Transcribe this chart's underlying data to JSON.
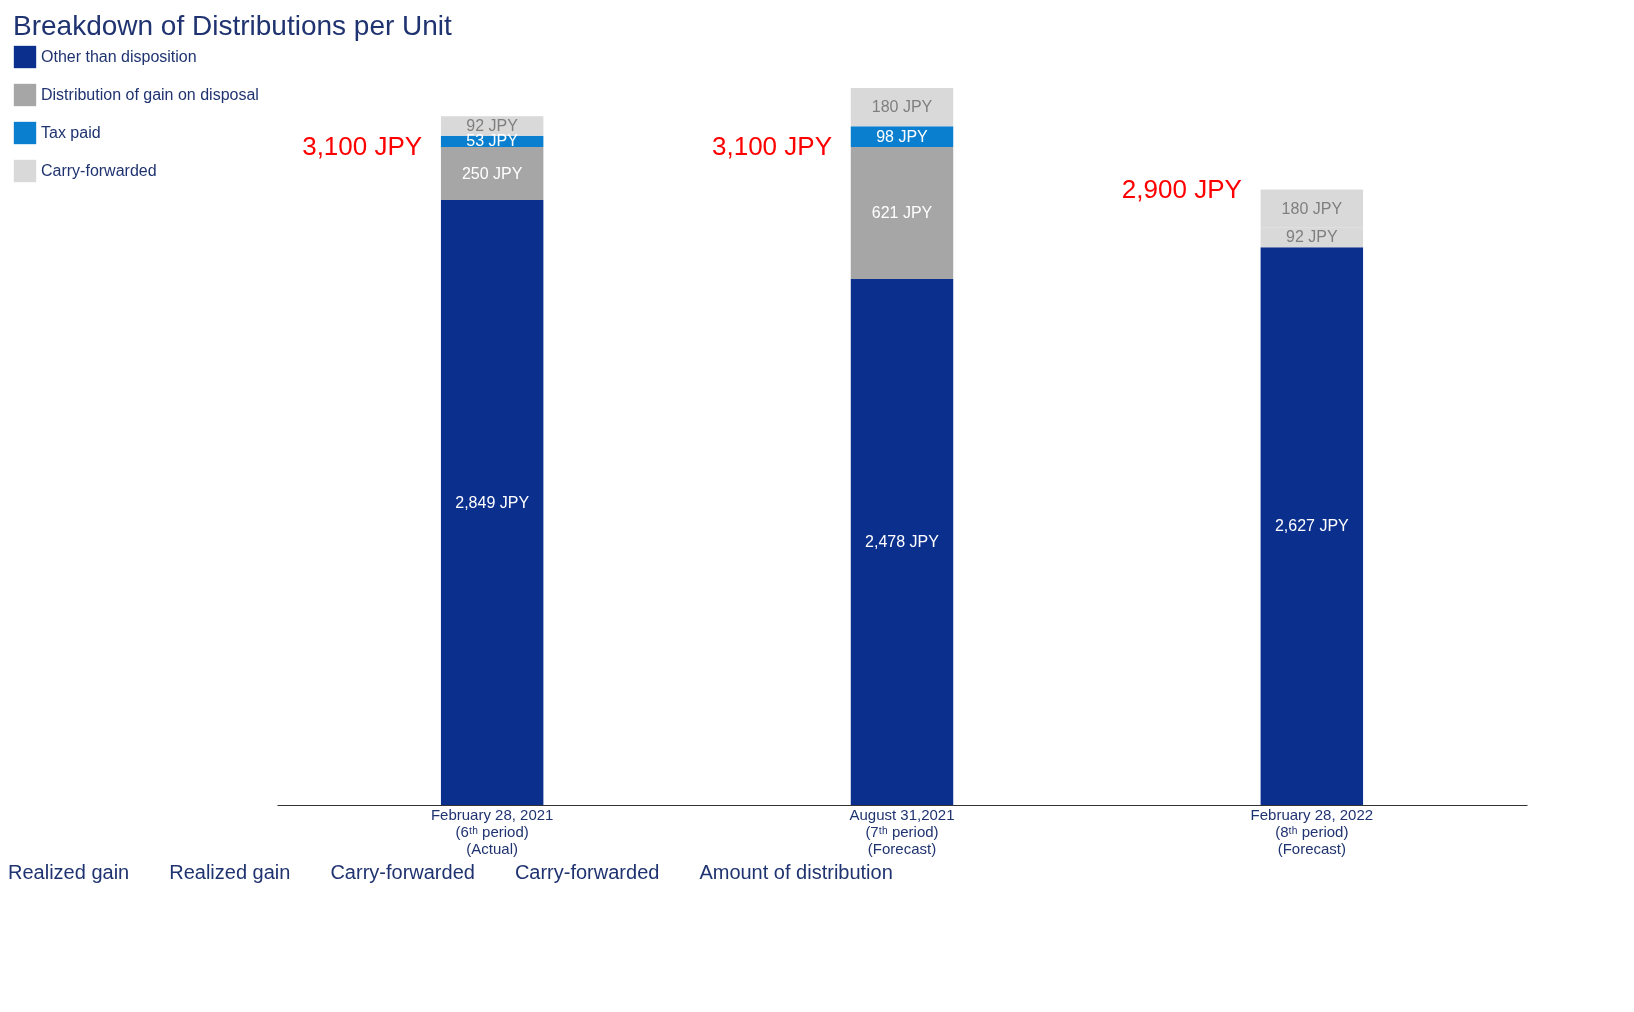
{
  "chart_data": {
    "type": "bar",
    "title": "Breakdown of Distributions per Unit",
    "categories": [
      "February 28, 2021\n(6ᵗʰ period)\n(Actual)",
      "August 31,2021\n(7ᵗʰ period)\n(Forecast)",
      "February 28, 2022\n(8ᵗʰ period)\n(Forecast)"
    ],
    "stacked": true,
    "data_labels": true,
    "legend": "left",
    "tick_labels": "x",
    "series": [
      {
        "name": "Other than disposition",
        "color": "#0a2f8c",
        "values": [
          2849,
          2478,
          2627
        ],
        "value_labels": [
          "2,849 JPY",
          "2,478 JPY",
          "2,627 JPY"
        ]
      },
      {
        "name": "Distribution of gain on disposal",
        "color": "#a6a6a6",
        "values": [
          250,
          621,
          null
        ],
        "value_labels": [
          "250 JPY",
          "621 JPY",
          null
        ]
      },
      {
        "name": "Tax paid",
        "color": "#0a7fd0",
        "values": [
          53,
          98,
          null
        ],
        "value_labels": [
          "53 JPY",
          "98 JPY",
          null
        ]
      },
      {
        "name": "Carry-forwarded",
        "color": "#d9d9d9",
        "values": [
          92,
          180,
          92
        ],
        "value_labels": [
          "92 JPY",
          "180 JPY",
          "92 JPY"
        ]
      },
      {
        "color": "#d9d9d9",
        "values": [
          null,
          null,
          180
        ],
        "value_labels": [
          null,
          null,
          "180 JPY"
        ]
      }
    ],
    "annotations": [
      {
        "text": "3,100 JPY",
        "x": "February 28, 2021\n(6ᵗʰ period)\n(Actual)",
        "y": 3099
      },
      {
        "text": "3,100 JPY",
        "x": "August 31,2021\n(7ᵗʰ period)\n(Forecast)",
        "y": 3099
      },
      {
        "text": "2,900 JPY",
        "x": "February 28, 2022\n(8ᵗʰ period)\n(Forecast)",
        "y": 2899
      },
      "Realized gain",
      "Realized gain",
      "Carry-forwarded",
      "Carry-forwarded",
      "Amount of distribution"
    ]
  }
}
